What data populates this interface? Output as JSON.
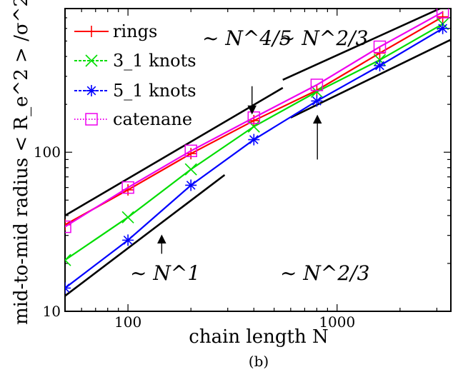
{
  "chart_data": {
    "type": "line",
    "title": "",
    "caption": "(b)",
    "xlabel": "chain length N",
    "ylabel": "mid-to-mid radius < R_e^2 > /σ^2",
    "xscale": "log",
    "yscale": "log",
    "xlim": [
      50,
      3500
    ],
    "ylim": [
      10,
      800
    ],
    "x_ticks": [
      100,
      1000
    ],
    "x_tick_labels": [
      "100",
      "1000"
    ],
    "y_ticks": [
      10,
      100
    ],
    "y_tick_labels": [
      "10",
      "100"
    ],
    "legend_position": "top-left",
    "series": [
      {
        "name": "rings",
        "color": "#ff0000",
        "marker": "plus",
        "x": [
          50,
          100,
          200,
          400,
          800,
          1600,
          3200
        ],
        "y": [
          35,
          58,
          98,
          158,
          245,
          420,
          710
        ]
      },
      {
        "name": "3_1 knots",
        "color": "#00dd00",
        "marker": "x",
        "x": [
          50,
          100,
          200,
          400,
          800,
          1600,
          3200
        ],
        "y": [
          21,
          39,
          78,
          145,
          240,
          380,
          640
        ]
      },
      {
        "name": "5_1 knots",
        "color": "#0000ff",
        "marker": "asterisk",
        "x": [
          50,
          100,
          200,
          400,
          800,
          1600,
          3200
        ],
        "y": [
          14,
          28,
          62,
          120,
          210,
          350,
          600
        ]
      },
      {
        "name": "catenane",
        "color": "#ee00ee",
        "marker": "square",
        "x": [
          50,
          100,
          200,
          400,
          800,
          1600,
          3200
        ],
        "y": [
          34,
          60,
          102,
          165,
          265,
          460,
          760
        ]
      }
    ],
    "guide_lines": [
      {
        "x": [
          50,
          550
        ],
        "y": [
          40,
          254
        ]
      },
      {
        "x": [
          550,
          3500
        ],
        "y": [
          285,
          860
        ]
      },
      {
        "x": [
          50,
          290
        ],
        "y": [
          12.5,
          72
        ]
      },
      {
        "x": [
          600,
          3500
        ],
        "y": [
          165,
          510
        ]
      }
    ],
    "annotations": [
      {
        "text": "~ N^4/5",
        "arrow_from": [
          392,
          260
        ],
        "arrow_to": [
          392,
          175
        ]
      },
      {
        "text": "~ N^2/3"
      },
      {
        "text": "~ N^1",
        "arrow_from": [
          145,
          23
        ],
        "arrow_to": [
          145,
          30
        ]
      },
      {
        "text": "~ N^2/3",
        "arrow_from": [
          805,
          90
        ],
        "arrow_to": [
          805,
          170
        ]
      }
    ]
  }
}
